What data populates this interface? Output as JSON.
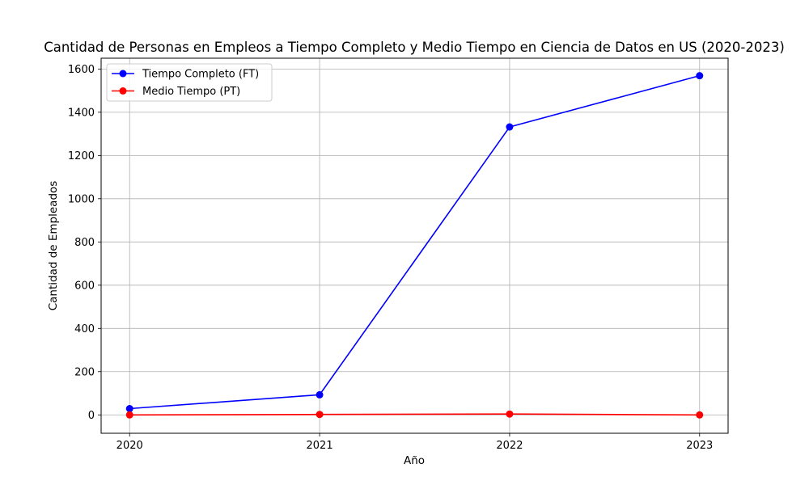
{
  "chart_data": {
    "type": "line",
    "title": "Cantidad de Personas en Empleos a Tiempo Completo y Medio Tiempo en Ciencia de Datos en US (2020-2023)",
    "xlabel": "Año",
    "ylabel": "Cantidad de Empleados",
    "x": [
      2020,
      2021,
      2022,
      2023
    ],
    "x_tick_labels": [
      "2020",
      "2021",
      "2022",
      "2023"
    ],
    "y_ticks": [
      0,
      200,
      400,
      600,
      800,
      1000,
      1200,
      1400,
      1600
    ],
    "y_tick_labels": [
      "0",
      "200",
      "400",
      "600",
      "800",
      "1000",
      "1200",
      "1400",
      "1600"
    ],
    "xlim": [
      2019.85,
      2023.15
    ],
    "ylim": [
      -85,
      1650
    ],
    "grid": true,
    "legend_position": "top-left",
    "series": [
      {
        "name": "Tiempo Completo (FT)",
        "values": [
          29,
          93,
          1332,
          1569
        ],
        "color": "#0000ff",
        "marker": "circle"
      },
      {
        "name": "Medio Tiempo (PT)",
        "values": [
          0,
          2,
          4,
          0
        ],
        "color": "#ff0000",
        "marker": "circle"
      }
    ]
  }
}
